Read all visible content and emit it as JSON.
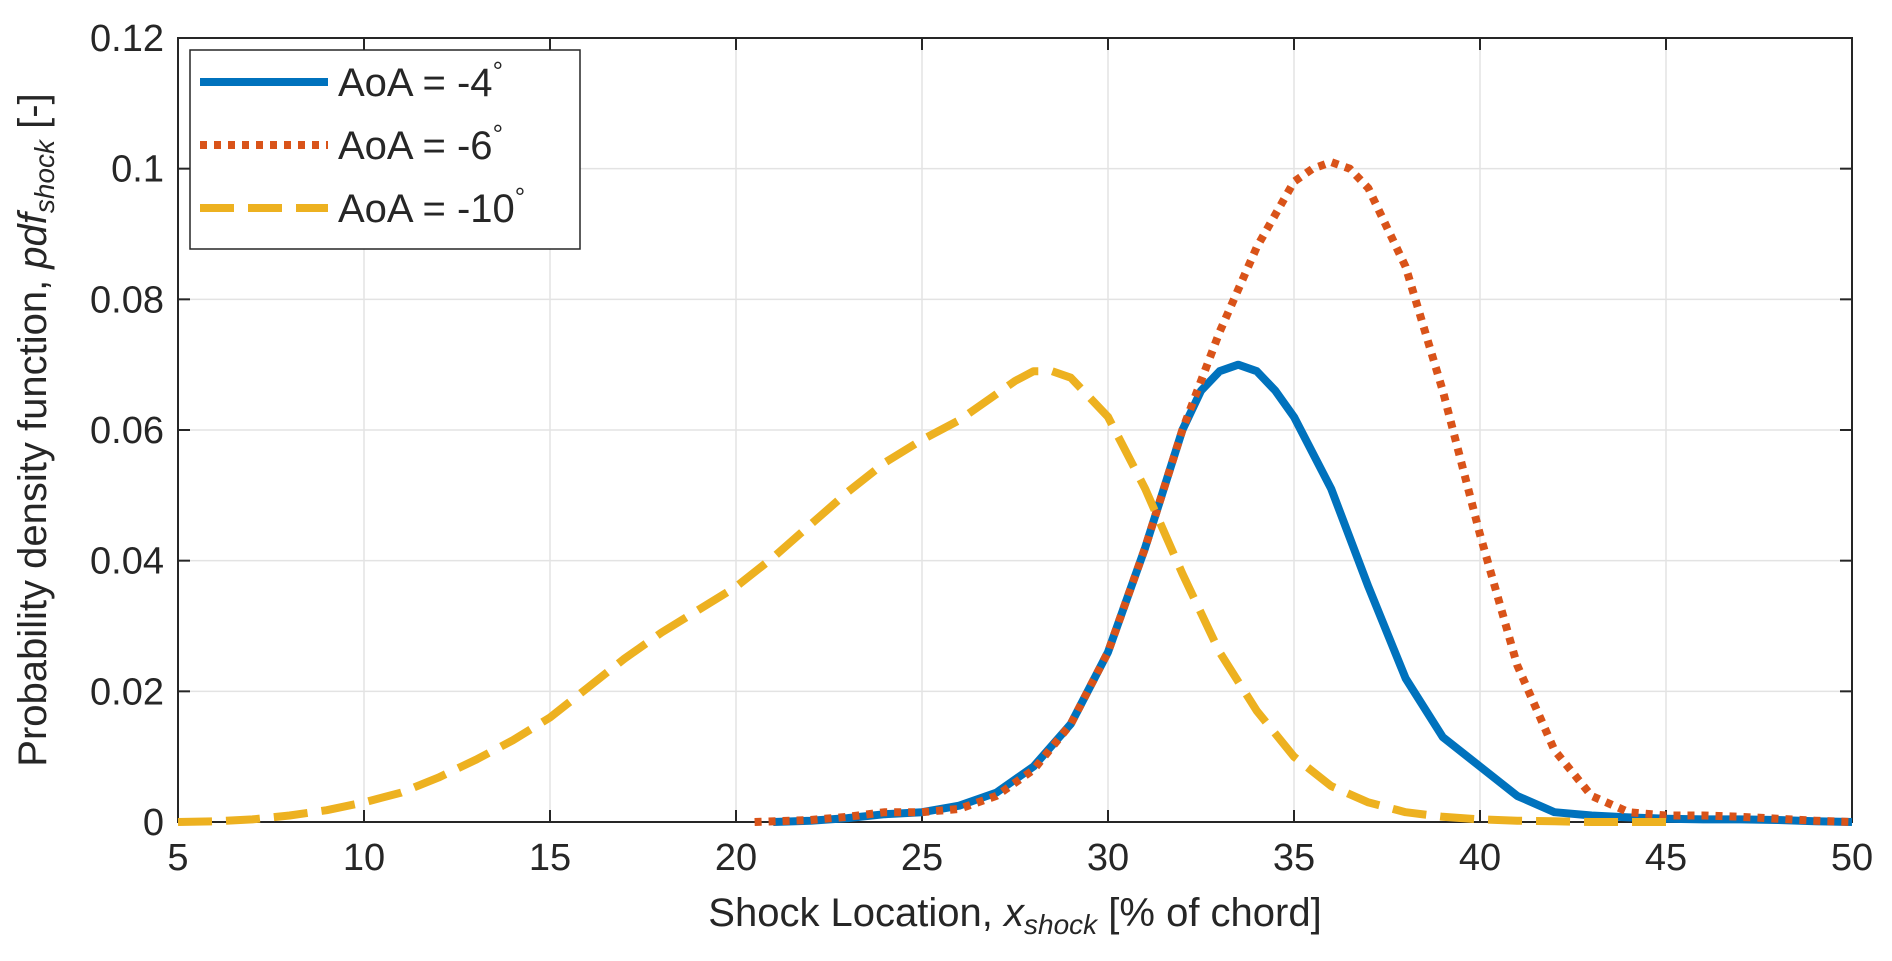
{
  "chart_data": {
    "type": "line",
    "xlabel": {
      "prefix": "Shock Location, ",
      "var": "x",
      "sub": "shock",
      "suffix": " [% of chord]"
    },
    "ylabel": {
      "prefix": "Probability density function, ",
      "var": "pdf",
      "sub": "shock",
      "suffix": " [-]"
    },
    "xlim": [
      5,
      50
    ],
    "ylim": [
      0,
      0.12
    ],
    "xticks": [
      5,
      10,
      15,
      20,
      25,
      30,
      35,
      40,
      45,
      50
    ],
    "xtick_labels": [
      "5",
      "10",
      "15",
      "20",
      "25",
      "30",
      "35",
      "40",
      "45",
      "50"
    ],
    "yticks": [
      0,
      0.02,
      0.04,
      0.06,
      0.08,
      0.1,
      0.12
    ],
    "ytick_labels": [
      "0",
      "0.02",
      "0.04",
      "0.06",
      "0.08",
      "0.1",
      "0.12"
    ],
    "grid": true,
    "legend_position": "top-left",
    "series": [
      {
        "name": "AoA  =  -4",
        "degree": "°",
        "color": "#0072BD",
        "style": "solid",
        "x": [
          21,
          22,
          23,
          24,
          25,
          26,
          27,
          28,
          29,
          30,
          31,
          32,
          32.5,
          33,
          33.5,
          34,
          34.5,
          35,
          36,
          37,
          38,
          39,
          40,
          41,
          42,
          43,
          44,
          45,
          46,
          47,
          48,
          49,
          50
        ],
        "y": [
          0,
          0.0002,
          0.0006,
          0.0012,
          0.0015,
          0.0025,
          0.0045,
          0.0085,
          0.015,
          0.026,
          0.042,
          0.06,
          0.066,
          0.069,
          0.07,
          0.069,
          0.066,
          0.062,
          0.051,
          0.036,
          0.022,
          0.013,
          0.0085,
          0.004,
          0.0015,
          0.001,
          0.0007,
          0.0005,
          0.0004,
          0.0004,
          0.0003,
          0.0001,
          0
        ]
      },
      {
        "name": "AoA  =  -6",
        "degree": "°",
        "color": "#D95319",
        "style": "dotted",
        "x": [
          20.5,
          22,
          23,
          24,
          25,
          26,
          27,
          28,
          29,
          30,
          31,
          32,
          33,
          34,
          35,
          35.5,
          36,
          36.5,
          37,
          38,
          39,
          40,
          41,
          42,
          43,
          44,
          45,
          46,
          47,
          48,
          49,
          50
        ],
        "y": [
          0,
          0.0003,
          0.0008,
          0.0015,
          0.0015,
          0.002,
          0.004,
          0.008,
          0.015,
          0.026,
          0.042,
          0.06,
          0.075,
          0.088,
          0.098,
          0.1,
          0.101,
          0.1,
          0.097,
          0.085,
          0.066,
          0.044,
          0.024,
          0.011,
          0.004,
          0.0015,
          0.001,
          0.001,
          0.0008,
          0.0005,
          0.0002,
          0
        ]
      },
      {
        "name": "AoA  =  -10",
        "degree": "°",
        "color": "#EDB120",
        "style": "dashed",
        "x": [
          5,
          6,
          7,
          8,
          9,
          10,
          11,
          12,
          13,
          14,
          15,
          16,
          17,
          18,
          19,
          20,
          21,
          22,
          23,
          24,
          25,
          26,
          27,
          27.5,
          28,
          28.5,
          29,
          30,
          31,
          32,
          33,
          34,
          35,
          36,
          37,
          38,
          39,
          40,
          41,
          42,
          43,
          44,
          45
        ],
        "y": [
          0,
          0.0001,
          0.0004,
          0.001,
          0.0018,
          0.003,
          0.0045,
          0.0068,
          0.0095,
          0.0125,
          0.016,
          0.0205,
          0.025,
          0.029,
          0.0325,
          0.036,
          0.0405,
          0.0455,
          0.0505,
          0.055,
          0.0585,
          0.0615,
          0.0655,
          0.0675,
          0.069,
          0.069,
          0.068,
          0.062,
          0.051,
          0.038,
          0.026,
          0.017,
          0.01,
          0.0055,
          0.003,
          0.0015,
          0.0008,
          0.0004,
          0.0002,
          0.0001,
          0,
          0,
          0
        ]
      }
    ]
  }
}
